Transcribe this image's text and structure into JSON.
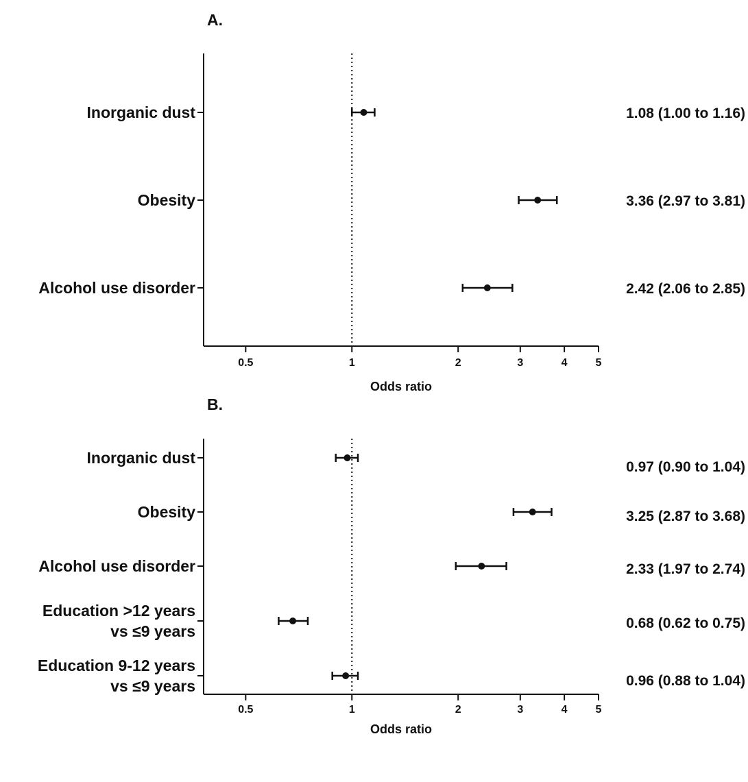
{
  "chart_data": [
    {
      "type": "scatter",
      "panel": "A.",
      "xlabel": "Odds ratio",
      "x_scale": "log",
      "xlim": [
        0.38,
        5
      ],
      "xticks": [
        0.5,
        1,
        2,
        3,
        4,
        5
      ],
      "xtick_labels": [
        "0.5",
        "1",
        "2",
        "3",
        "4",
        "5"
      ],
      "reference_line": 1,
      "rows": [
        {
          "label": [
            "Inorganic dust"
          ],
          "or": 1.08,
          "lo": 1.0,
          "hi": 1.16,
          "text": "1.08 (1.00 to 1.16)"
        },
        {
          "label": [
            "Obesity"
          ],
          "or": 3.36,
          "lo": 2.97,
          "hi": 3.81,
          "text": "3.36 (2.97 to 3.81)"
        },
        {
          "label": [
            "Alcohol use disorder"
          ],
          "or": 2.42,
          "lo": 2.06,
          "hi": 2.85,
          "text": "2.42 (2.06 to 2.85)"
        }
      ]
    },
    {
      "type": "scatter",
      "panel": "B.",
      "xlabel": "Odds ratio",
      "x_scale": "log",
      "xlim": [
        0.38,
        5
      ],
      "xticks": [
        0.5,
        1,
        2,
        3,
        4,
        5
      ],
      "xtick_labels": [
        "0.5",
        "1",
        "2",
        "3",
        "4",
        "5"
      ],
      "reference_line": 1,
      "rows": [
        {
          "label": [
            "Inorganic dust"
          ],
          "or": 0.97,
          "lo": 0.9,
          "hi": 1.04,
          "text": "0.97 (0.90 to 1.04)"
        },
        {
          "label": [
            "Obesity"
          ],
          "or": 3.25,
          "lo": 2.87,
          "hi": 3.68,
          "text": "3.25 (2.87 to 3.68)"
        },
        {
          "label": [
            "Alcohol use disorder"
          ],
          "or": 2.33,
          "lo": 1.97,
          "hi": 2.74,
          "text": "2.33 (1.97 to 2.74)"
        },
        {
          "label": [
            "Education >12 years",
            "vs ≤9 years"
          ],
          "or": 0.68,
          "lo": 0.62,
          "hi": 0.75,
          "text": "0.68 (0.62 to 0.75)"
        },
        {
          "label": [
            "Education 9-12 years",
            "vs ≤9 years"
          ],
          "or": 0.96,
          "lo": 0.88,
          "hi": 1.04,
          "text": "0.96 (0.88 to 1.04)"
        }
      ]
    }
  ]
}
